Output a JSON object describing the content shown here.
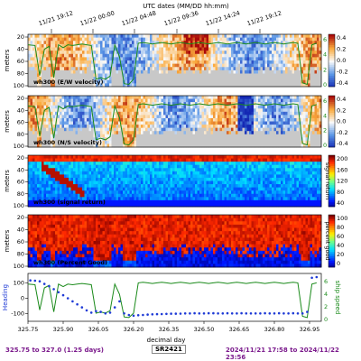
{
  "figure": {
    "top_axis_label": "UTC dates (MM/DD hh:mm)",
    "top_ticks": [
      "11/21 19:12",
      "11/22 00:00",
      "11/22 04:48",
      "11/22 09:36",
      "11/22 14:24",
      "11/22 19:12"
    ],
    "x_axis_label": "decimal day",
    "footer": {
      "range_text": "325.75 to 327.0 (1.25 days)",
      "ship": "SR2421",
      "date_range": "2024/11/21 17:58 to 2024/11/22 23:56"
    }
  },
  "chart_data": [
    {
      "type": "heatmap",
      "title": "wh300 (E/W velocity)",
      "ylabel": "meters",
      "yticks": [
        20,
        40,
        60,
        80,
        100
      ],
      "colorbar_ticks": [
        "0.4",
        "0.2",
        "0.0",
        "-0.2",
        "-0.4"
      ],
      "colorscale": "diverging-blue-red",
      "secondary_axis": {
        "ticks": [
          "6",
          "4",
          "2",
          "0"
        ],
        "color": "#1a8a1a"
      }
    },
    {
      "type": "heatmap",
      "title": "wh300 (N/S velocity)",
      "ylabel": "meters",
      "yticks": [
        20,
        40,
        60,
        80,
        100
      ],
      "colorbar_ticks": [
        "0.4",
        "0.2",
        "0.0",
        "-0.2",
        "-0.4"
      ],
      "colorscale": "diverging-blue-red",
      "secondary_axis": {
        "ticks": [
          "6",
          "4",
          "2",
          "0"
        ],
        "color": "#1a8a1a"
      }
    },
    {
      "type": "heatmap",
      "title": "wh300 (signal return)",
      "ylabel": "meters",
      "yticks": [
        20,
        40,
        60,
        80,
        100
      ],
      "colorbar_label": "signal return",
      "colorbar_ticks": [
        "200",
        "160",
        "120",
        "80",
        "40"
      ],
      "colorscale": "jet"
    },
    {
      "type": "heatmap",
      "title": "wh300 (Percent Good)",
      "ylabel": "meters",
      "yticks": [
        20,
        40,
        60,
        80,
        100
      ],
      "colorbar_label": "percent good",
      "colorbar_ticks": [
        "100",
        "80",
        "60",
        "40",
        "20",
        "0"
      ],
      "colorscale": "jet"
    },
    {
      "type": "scatter",
      "ylabel_left": "Heading",
      "ylabel_right": "ship speed",
      "yticks_left": [
        100,
        0,
        -100
      ],
      "yticks_right": [
        6,
        4,
        2,
        0
      ],
      "xlim": [
        325.75,
        327.0
      ],
      "xticks": [
        "325.75",
        "325.90",
        "326.05",
        "326.20",
        "326.35",
        "326.50",
        "326.65",
        "326.80",
        "326.95"
      ],
      "series": [
        {
          "color": "#1f3bd6",
          "x": [
            325.76,
            325.78,
            325.8,
            325.82,
            325.84,
            325.86,
            325.88,
            325.9,
            325.92,
            325.94,
            325.96,
            325.98,
            326.0,
            326.02,
            326.04,
            326.06,
            326.08,
            326.1,
            326.12,
            326.14,
            326.16,
            326.18,
            326.2,
            326.22,
            326.24,
            326.26,
            326.28,
            326.3,
            326.32,
            326.34,
            326.36,
            326.38,
            326.4,
            326.42,
            326.44,
            326.46,
            326.48,
            326.5,
            326.52,
            326.54,
            326.56,
            326.58,
            326.6,
            326.62,
            326.64,
            326.66,
            326.68,
            326.7,
            326.72,
            326.74,
            326.76,
            326.78,
            326.8,
            326.82,
            326.84,
            326.86,
            326.88,
            326.9,
            326.92,
            326.94,
            326.96,
            326.98
          ],
          "y": [
            118,
            116,
            112,
            95,
            80,
            60,
            40,
            20,
            0,
            -20,
            -40,
            -60,
            -80,
            -95,
            -85,
            -90,
            -100,
            -95,
            -60,
            -20,
            -100,
            -110,
            -115,
            -112,
            -110,
            -108,
            -106,
            -105,
            -104,
            -103,
            -102,
            -102,
            -101,
            -100,
            -100,
            -99,
            -100,
            -100,
            -99,
            -99,
            -100,
            -100,
            -99,
            -100,
            -100,
            -99,
            -100,
            -100,
            -100,
            -100,
            -99,
            -100,
            -100,
            -99,
            -100,
            -100,
            -99,
            -100,
            -100,
            -90,
            135,
            140
          ]
        },
        {
          "color": "#1a8a1a",
          "x": [
            325.75,
            325.78,
            325.8,
            325.82,
            325.84,
            325.86,
            325.88,
            325.9,
            325.92,
            325.94,
            325.96,
            325.98,
            326.0,
            326.02,
            326.04,
            326.06,
            326.08,
            326.1,
            326.12,
            326.14,
            326.16,
            326.18,
            326.2,
            326.22,
            326.24,
            326.26,
            326.28,
            326.3,
            326.32,
            326.34,
            326.36,
            326.38,
            326.4,
            326.42,
            326.44,
            326.46,
            326.48,
            326.5,
            326.52,
            326.54,
            326.56,
            326.58,
            326.6,
            326.62,
            326.64,
            326.66,
            326.68,
            326.7,
            326.72,
            326.74,
            326.76,
            326.78,
            326.8,
            326.82,
            326.84,
            326.86,
            326.88,
            326.9,
            326.92,
            326.94,
            326.96,
            326.98
          ],
          "y": [
            5.6,
            5.5,
            1.5,
            5.0,
            5.4,
            1.2,
            5.6,
            5.2,
            5.6,
            5.5,
            5.6,
            5.7,
            5.6,
            5.5,
            1.0,
            1.2,
            1.0,
            1.4,
            5.6,
            4.0,
            0.4,
            0.3,
            1.0,
            5.8,
            5.9,
            5.8,
            5.7,
            5.8,
            5.9,
            5.8,
            5.7,
            5.8,
            5.9,
            5.8,
            5.7,
            5.8,
            5.9,
            5.8,
            5.7,
            5.8,
            5.9,
            5.8,
            5.7,
            5.8,
            5.9,
            5.8,
            5.7,
            5.8,
            5.9,
            5.8,
            5.7,
            5.8,
            5.9,
            5.8,
            5.7,
            5.8,
            5.9,
            5.8,
            0.5,
            0.3,
            5.6,
            5.8
          ]
        }
      ]
    }
  ]
}
